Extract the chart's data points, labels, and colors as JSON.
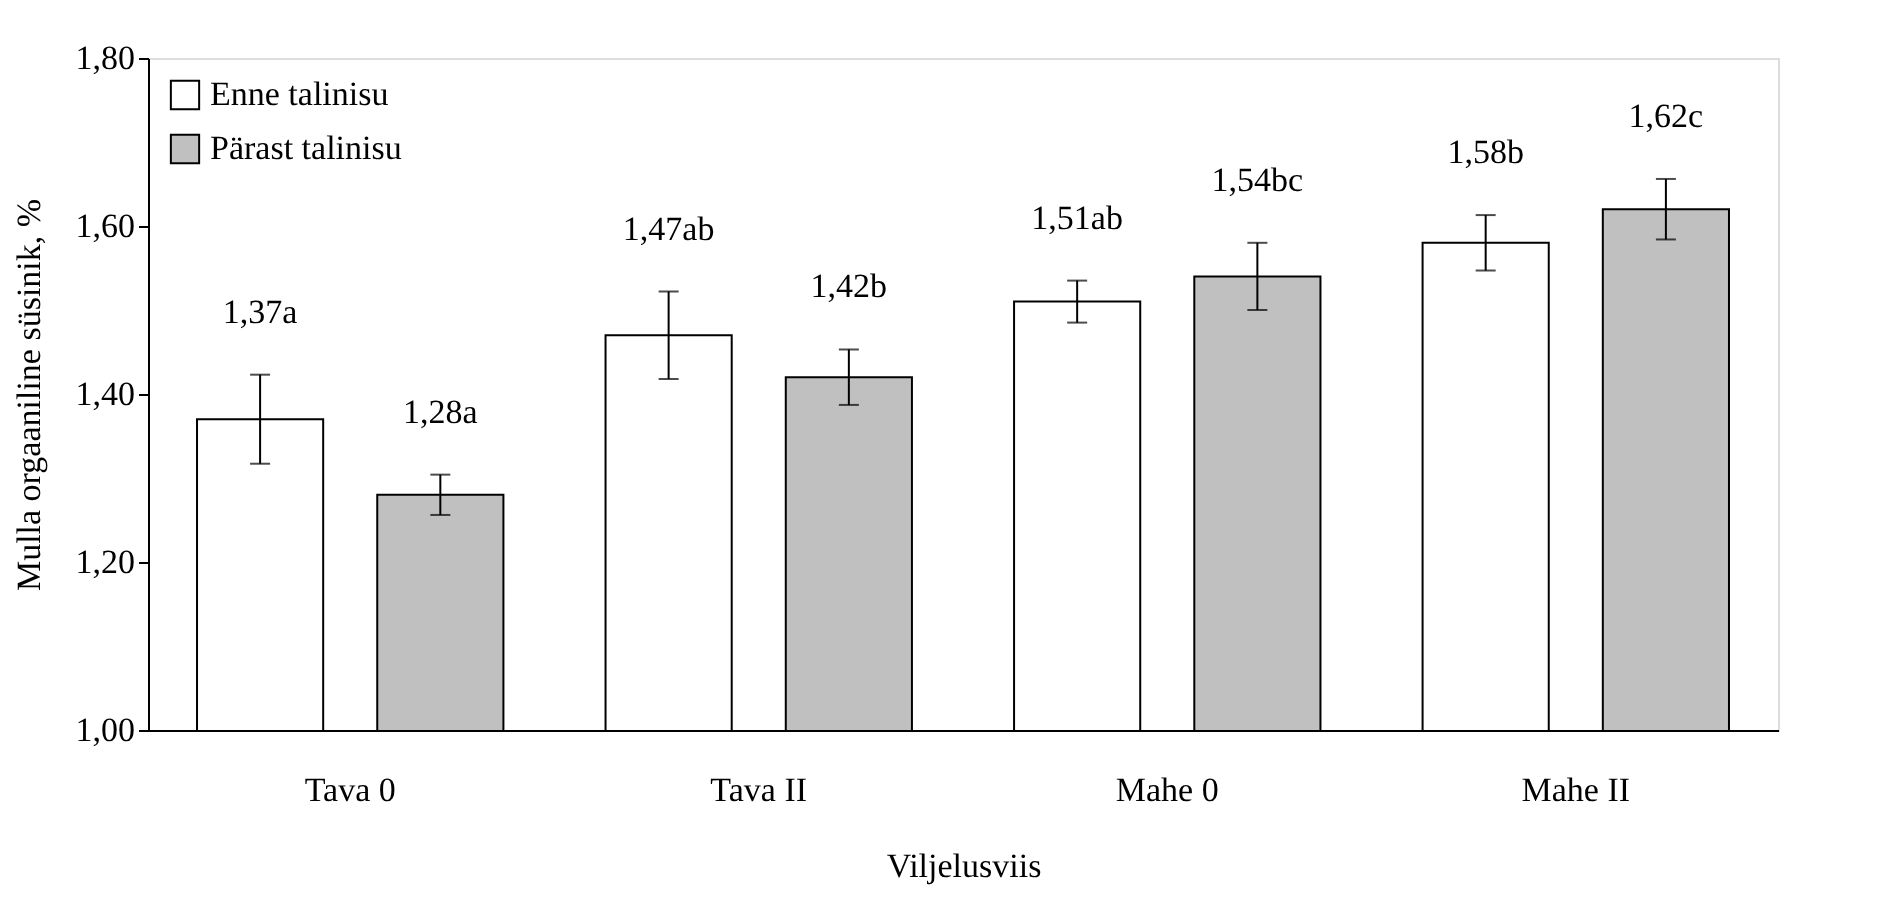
{
  "chart_data": {
    "type": "bar",
    "xlabel": "Viljelusviis",
    "ylabel": "Mulla orgaaniline süsinik, %",
    "categories": [
      "Tava 0",
      "Tava II",
      "Mahe 0",
      "Mahe II"
    ],
    "series": [
      {
        "name": "Enne talinisu",
        "color": "#ffffff",
        "values": [
          1.37,
          1.47,
          1.51,
          1.58
        ],
        "errors": [
          0.053,
          0.052,
          0.025,
          0.033
        ],
        "value_labels": [
          "1,37a",
          "1,47ab",
          "1,51ab",
          "1,58b"
        ]
      },
      {
        "name": "Pärast talinisu",
        "color": "#c0c0c0",
        "values": [
          1.28,
          1.42,
          1.54,
          1.62
        ],
        "errors": [
          0.024,
          0.033,
          0.04,
          0.036
        ],
        "value_labels": [
          "1,28a",
          "1,42b",
          "1,54bc",
          "1,62c"
        ]
      }
    ],
    "ylim": [
      1.0,
      1.8
    ],
    "yticks": [
      {
        "value": 1.0,
        "label": "1,00"
      },
      {
        "value": 1.2,
        "label": "1,20"
      },
      {
        "value": 1.4,
        "label": "1,40"
      },
      {
        "value": 1.6,
        "label": "1,60"
      },
      {
        "value": 1.8,
        "label": "1,80"
      }
    ],
    "grid": false,
    "legend": "top left"
  }
}
